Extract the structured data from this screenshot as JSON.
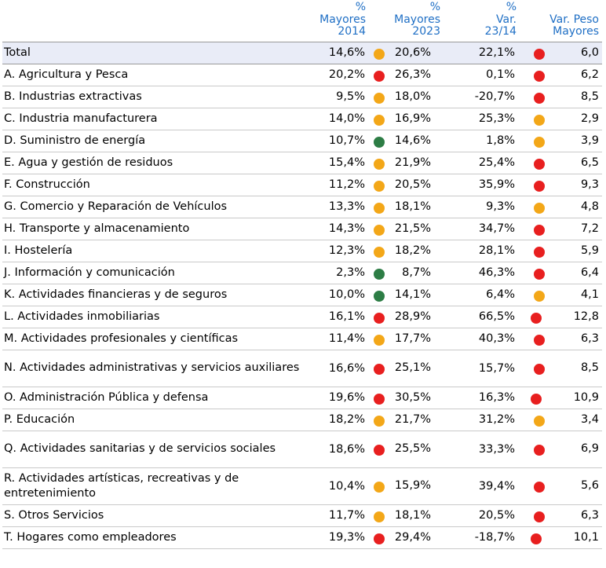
{
  "headers": [
    "% Mayores 2014",
    "% Mayores 2023",
    "% Var. 23/14",
    "Var. Peso Mayores"
  ],
  "header_lines": [
    [
      "%",
      "Mayores",
      "2014"
    ],
    [
      "%",
      "Mayores",
      "2023"
    ],
    [
      "%",
      "Var.",
      "23/14"
    ],
    [
      "Var. Peso",
      "Mayores"
    ]
  ],
  "colors": {
    "red": "#e81f1f",
    "amber": "#f3a718",
    "green": "#2d7d45",
    "header_text": "#1f6fc5",
    "total_bg": "#e9ecf7"
  },
  "rows": [
    {
      "label": "Total",
      "mayores_2014": "14,6%",
      "dot_2023": "amber",
      "mayores_2023": "20,6%",
      "var": "22,1%",
      "dot_peso": "red",
      "peso": "6,0"
    },
    {
      "label": "A. Agricultura y Pesca",
      "mayores_2014": "20,2%",
      "dot_2023": "red",
      "mayores_2023": "26,3%",
      "var": "0,1%",
      "dot_peso": "red",
      "peso": "6,2"
    },
    {
      "label": "B. Industrias extractivas",
      "mayores_2014": "9,5%",
      "dot_2023": "amber",
      "mayores_2023": "18,0%",
      "var": "-20,7%",
      "dot_peso": "red",
      "peso": "8,5"
    },
    {
      "label": "C. Industria manufacturera",
      "mayores_2014": "14,0%",
      "dot_2023": "amber",
      "mayores_2023": "16,9%",
      "var": "25,3%",
      "dot_peso": "amber",
      "peso": "2,9"
    },
    {
      "label": "D. Suministro de energía",
      "mayores_2014": "10,7%",
      "dot_2023": "green",
      "mayores_2023": "14,6%",
      "var": "1,8%",
      "dot_peso": "amber",
      "peso": "3,9"
    },
    {
      "label": "E. Agua y gestión de residuos",
      "mayores_2014": "15,4%",
      "dot_2023": "amber",
      "mayores_2023": "21,9%",
      "var": "25,4%",
      "dot_peso": "red",
      "peso": "6,5"
    },
    {
      "label": "F. Construcción",
      "mayores_2014": "11,2%",
      "dot_2023": "amber",
      "mayores_2023": "20,5%",
      "var": "35,9%",
      "dot_peso": "red",
      "peso": "9,3"
    },
    {
      "label": "G. Comercio y Reparación de Vehículos",
      "mayores_2014": "13,3%",
      "dot_2023": "amber",
      "mayores_2023": "18,1%",
      "var": "9,3%",
      "dot_peso": "amber",
      "peso": "4,8"
    },
    {
      "label": "H. Transporte y almacenamiento",
      "mayores_2014": "14,3%",
      "dot_2023": "amber",
      "mayores_2023": "21,5%",
      "var": "34,7%",
      "dot_peso": "red",
      "peso": "7,2"
    },
    {
      "label": "I. Hostelería",
      "mayores_2014": "12,3%",
      "dot_2023": "amber",
      "mayores_2023": "18,2%",
      "var": "28,1%",
      "dot_peso": "red",
      "peso": "5,9"
    },
    {
      "label": "J. Información y comunicación",
      "mayores_2014": "2,3%",
      "dot_2023": "green",
      "mayores_2023": "8,7%",
      "var": "46,3%",
      "dot_peso": "red",
      "peso": "6,4"
    },
    {
      "label": "K. Actividades financieras y de seguros",
      "mayores_2014": "10,0%",
      "dot_2023": "green",
      "mayores_2023": "14,1%",
      "var": "6,4%",
      "dot_peso": "amber",
      "peso": "4,1"
    },
    {
      "label": "L. Actividades inmobiliarias",
      "mayores_2014": "16,1%",
      "dot_2023": "red",
      "mayores_2023": "28,9%",
      "var": "66,5%",
      "dot_peso": "red",
      "peso": "12,8"
    },
    {
      "label": "M. Actividades profesionales y científicas",
      "mayores_2014": "11,4%",
      "dot_2023": "amber",
      "mayores_2023": "17,7%",
      "var": "40,3%",
      "dot_peso": "red",
      "peso": "6,3"
    },
    {
      "label": "N. Actividades administrativas y servicios auxiliares",
      "mayores_2014": "16,6%",
      "dot_2023": "red",
      "mayores_2023": "25,1%",
      "var": "15,7%",
      "dot_peso": "red",
      "peso": "8,5"
    },
    {
      "label": "O. Administración Pública y defensa",
      "mayores_2014": "19,6%",
      "dot_2023": "red",
      "mayores_2023": "30,5%",
      "var": "16,3%",
      "dot_peso": "red",
      "peso": "10,9"
    },
    {
      "label": "P. Educación",
      "mayores_2014": "18,2%",
      "dot_2023": "amber",
      "mayores_2023": "21,7%",
      "var": "31,2%",
      "dot_peso": "amber",
      "peso": "3,4"
    },
    {
      "label": "Q. Actividades sanitarias y de servicios sociales",
      "mayores_2014": "18,6%",
      "dot_2023": "red",
      "mayores_2023": "25,5%",
      "var": "33,3%",
      "dot_peso": "red",
      "peso": "6,9"
    },
    {
      "label": "R. Actividades artísticas, recreativas y de entretenimiento",
      "mayores_2014": "10,4%",
      "dot_2023": "amber",
      "mayores_2023": "15,9%",
      "var": "39,4%",
      "dot_peso": "red",
      "peso": "5,6"
    },
    {
      "label": "S. Otros Servicios",
      "mayores_2014": "11,7%",
      "dot_2023": "amber",
      "mayores_2023": "18,1%",
      "var": "20,5%",
      "dot_peso": "red",
      "peso": "6,3"
    },
    {
      "label": "T. Hogares como empleadores",
      "mayores_2014": "19,3%",
      "dot_2023": "red",
      "mayores_2023": "29,4%",
      "var": "-18,7%",
      "dot_peso": "red",
      "peso": "10,1"
    }
  ]
}
